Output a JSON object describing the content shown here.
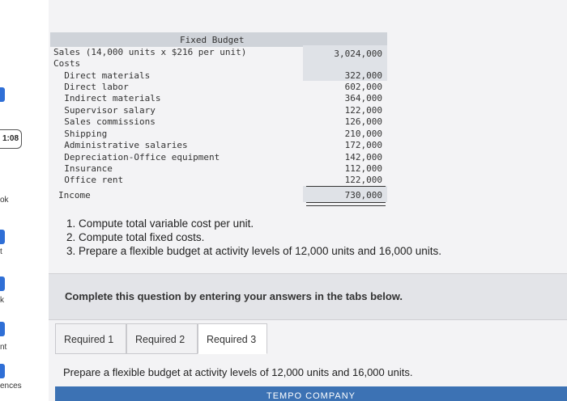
{
  "sidebar": {
    "timer": "1:08",
    "fragments": [
      "ok",
      "t",
      "k",
      "nt",
      "ences"
    ]
  },
  "budget": {
    "title": "Fixed Budget",
    "rows": [
      {
        "label": "Sales (14,000 units x $216 per unit)",
        "value": "3,024,000"
      },
      {
        "label": "Costs",
        "value": ""
      },
      {
        "label": "  Direct materials",
        "value": "322,000"
      },
      {
        "label": "  Direct labor",
        "value": "602,000"
      },
      {
        "label": "  Indirect materials",
        "value": "364,000"
      },
      {
        "label": "  Supervisor salary",
        "value": "122,000"
      },
      {
        "label": "  Sales commissions",
        "value": "126,000"
      },
      {
        "label": "  Shipping",
        "value": "210,000"
      },
      {
        "label": "  Administrative salaries",
        "value": "172,000"
      },
      {
        "label": "  Depreciation-Office equipment",
        "value": "142,000"
      },
      {
        "label": "  Insurance",
        "value": "112,000"
      },
      {
        "label": "  Office rent",
        "value": "122,000"
      },
      {
        "label": "Income",
        "value": "730,000"
      }
    ]
  },
  "instructions": [
    "1. Compute total variable cost per unit.",
    "2. Compute total fixed costs.",
    "3. Prepare a flexible budget at activity levels of 12,000 units and 16,000 units."
  ],
  "complete_prompt": "Complete this question by entering your answers in the tabs below.",
  "tabs": [
    "Required 1",
    "Required 2",
    "Required 3"
  ],
  "active_tab": 2,
  "task_text": "Prepare a flexible budget at activity levels of 12,000 units and 16,000 units.",
  "company_header": "TEMPO COMPANY",
  "colors": {
    "accent": "#3c72b4",
    "rail_marker": "#2f6fd6"
  }
}
